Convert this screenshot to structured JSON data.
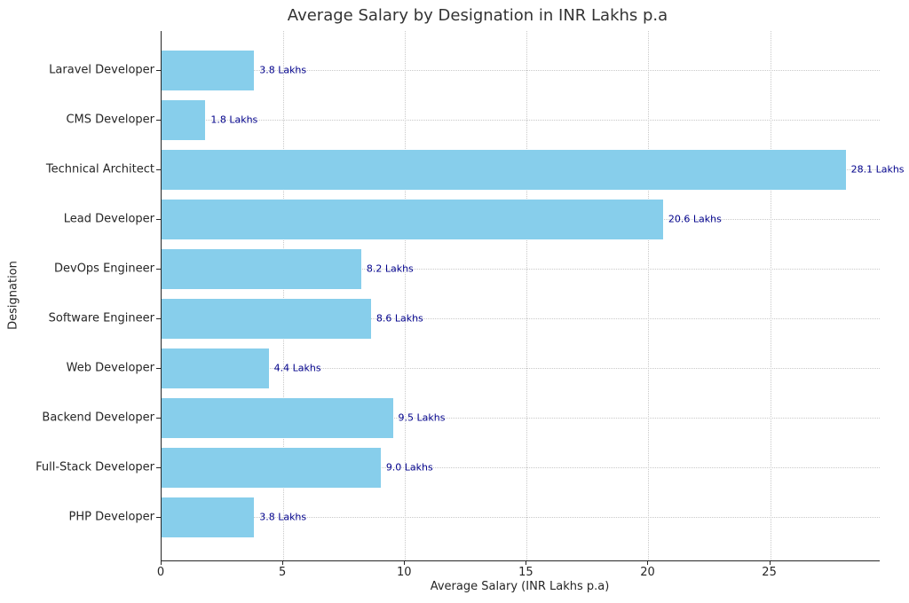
{
  "chart_data": {
    "type": "bar",
    "orientation": "horizontal",
    "title": "Average Salary by Designation in INR Lakhs p.a",
    "xlabel": "Average Salary (INR Lakhs p.a)",
    "ylabel": "Designation",
    "categories": [
      "Laravel Developer",
      "CMS Developer",
      "Technical Architect",
      "Lead Developer",
      "DevOps Engineer",
      "Software Engineer",
      "Web Developer",
      "Backend Developer",
      "Full-Stack Developer",
      "PHP Developer"
    ],
    "values": [
      3.8,
      1.8,
      28.1,
      20.6,
      8.2,
      8.6,
      4.4,
      9.5,
      9.0,
      3.8
    ],
    "value_labels": [
      "3.8 Lakhs",
      "1.8 Lakhs",
      "28.1 Lakhs",
      "20.6 Lakhs",
      "8.2 Lakhs",
      "8.6 Lakhs",
      "4.4 Lakhs",
      "9.5 Lakhs",
      "9.0 Lakhs",
      "3.8 Lakhs"
    ],
    "x_ticks": [
      0,
      5,
      10,
      15,
      20,
      25
    ],
    "x_tick_labels": [
      "0",
      "5",
      "10",
      "15",
      "20",
      "25"
    ],
    "xlim": [
      0,
      29.5
    ],
    "grid": true,
    "legend": false,
    "bar_color": "#87CEEB",
    "value_label_color": "#00008B"
  }
}
